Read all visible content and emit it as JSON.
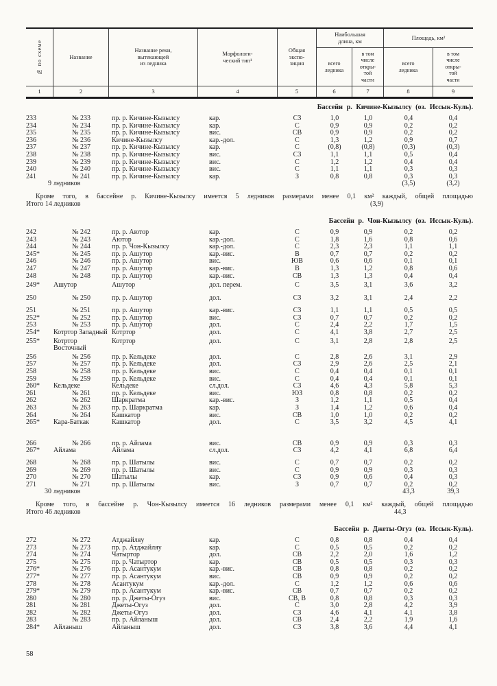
{
  "page_number": "58",
  "colors": {
    "paper": "#fbfaf6",
    "ink": "#1d1d1f",
    "rule": "#3c3c3c"
  },
  "table_header": {
    "col1": "№ по схеме",
    "col2": "Название",
    "col3": "Название реки,\nвытекающей\nиз ледника",
    "col4": "Морфологи-\nческий тип¹",
    "col5": "Общая\nэкспо-\nзиция",
    "group_length": "Наибольшая\nдлина, км",
    "group_area": "Площадь, км²",
    "sub_total": "всего\nледника",
    "sub_open": "в том\nчисле\nоткры-\nтой\nчасти",
    "col_numbers": [
      "1",
      "2",
      "3",
      "4",
      "5",
      "6",
      "7",
      "8",
      "9"
    ]
  },
  "sections": [
    {
      "basin": "Бассейн р. Кичине-Кызылсу (оз. Иссык-Куль).",
      "rows": [
        {
          "n": "233",
          "name": "№ 233",
          "river": "пр. р. Кичине-Кызылсу",
          "morph": "кар.",
          "exp": "СЗ",
          "lt": "1,0",
          "lo": "1,0",
          "at": "0,4",
          "ao": "0,4"
        },
        {
          "n": "234",
          "name": "№ 234",
          "river": "пр. р. Кичине-Кызылсу",
          "morph": "кар.",
          "exp": "С",
          "lt": "0,9",
          "lo": "0,9",
          "at": "0,2",
          "ao": "0,2"
        },
        {
          "n": "235",
          "name": "№ 235",
          "river": "пр. р. Кичине-Кызылсу",
          "morph": "вис.",
          "exp": "СВ",
          "lt": "0,9",
          "lo": "0,9",
          "at": "0,2",
          "ao": "0,2"
        },
        {
          "n": "236",
          "name": "№ 236",
          "river": "Кичине-Кызылсу",
          "morph": "кар.-дол.",
          "exp": "С",
          "lt": "1,3",
          "lo": "1,2",
          "at": "0,9",
          "ao": "0,7"
        },
        {
          "n": "237",
          "name": "№ 237",
          "river": "пр. р. Кичине-Кызылсу",
          "morph": "кар.",
          "exp": "С",
          "lt": "(0,8)",
          "lo": "(0,8)",
          "at": "(0,3)",
          "ao": "(0,3)"
        },
        {
          "n": "238",
          "name": "№ 238",
          "river": "пр. р. Кичине-Кызылсу",
          "morph": "вис.",
          "exp": "СЗ",
          "lt": "1,1",
          "lo": "1,1",
          "at": "0,5",
          "ao": "0,4"
        },
        {
          "n": "239",
          "name": "№ 239",
          "river": "пр. р. Кичине-Кызылсу",
          "morph": "вис.",
          "exp": "С",
          "lt": "1,2",
          "lo": "1,2",
          "at": "0,4",
          "ao": "0,4"
        },
        {
          "n": "240",
          "name": "№ 240",
          "river": "пр. р. Кичине-Кызылсу",
          "morph": "вис.",
          "exp": "С",
          "lt": "1,1",
          "lo": "1,1",
          "at": "0,3",
          "ao": "0,3"
        },
        {
          "n": "241",
          "name": "№ 241",
          "river": "пр. р. Кичине-Кызылсу",
          "morph": "кар.",
          "exp": "З",
          "lt": "0,8",
          "lo": "0,8",
          "at": "0,3",
          "ao": "0,3"
        }
      ],
      "summary": {
        "count": "9",
        "label": "ледников",
        "at": "(3,5)",
        "ao": "(3,2)"
      },
      "note_line1": "Кроме того, в бассейне р. Кичине-Кызылсу имеется 5 ледников размерами менее 0,1 км² каждый, общей площадью",
      "note_line2": "Итого 14 ледников",
      "note_value": "(3,9)"
    },
    {
      "basin": "Бассейн р. Чон-Кызылсу (оз. Иссык-Куль).",
      "rows": [
        {
          "n": "242",
          "name": "№ 242",
          "river": "пр. р. Аютор",
          "morph": "кар.",
          "exp": "С",
          "lt": "0,9",
          "lo": "0,9",
          "at": "0,2",
          "ao": "0,2"
        },
        {
          "n": "243",
          "name": "№ 243",
          "river": "Аютор",
          "morph": "кар.-дол.",
          "exp": "С",
          "lt": "1,8",
          "lo": "1,6",
          "at": "0,8",
          "ao": "0,6"
        },
        {
          "n": "244",
          "name": "№ 244",
          "river": "пр. р. Чон-Кызылсу",
          "morph": "кар.-дол.",
          "exp": "С",
          "lt": "2,3",
          "lo": "2,3",
          "at": "1,1",
          "ao": "1,1"
        },
        {
          "n": "245*",
          "name": "№ 245",
          "river": "пр. р. Ашутор",
          "morph": "кар.-вис.",
          "exp": "В",
          "lt": "0,7",
          "lo": "0,7",
          "at": "0,2",
          "ao": "0,2"
        },
        {
          "n": "246",
          "name": "№ 246",
          "river": "пр. р. Ашутор",
          "morph": "вис.",
          "exp": "ЮВ",
          "lt": "0,6",
          "lo": "0,6",
          "at": "0,1",
          "ao": "0,1"
        },
        {
          "n": "247",
          "name": "№ 247",
          "river": "пр. р. Ашутор",
          "morph": "кар.-вис.",
          "exp": "В",
          "lt": "1,3",
          "lo": "1,2",
          "at": "0,8",
          "ao": "0,6"
        },
        {
          "n": "248",
          "name": "№ 248",
          "river": "пр. р. Ашутор",
          "morph": "кар.-вис.",
          "exp": "СВ",
          "lt": "1,3",
          "lo": "1,3",
          "at": "0,4",
          "ao": "0,4"
        },
        {
          "n": "249*",
          "name": "Ашутор",
          "river": "Ашутор",
          "morph": "дол. перем.",
          "exp": "С",
          "lt": "3,5",
          "lo": "3,1",
          "at": "3,6",
          "ao": "3,2",
          "gap": 3
        },
        {
          "n": "250",
          "name": "№ 250",
          "river": "пр. р. Ашутор",
          "morph": "дол.",
          "exp": "СЗ",
          "lt": "3,2",
          "lo": "3,1",
          "at": "2,4",
          "ao": "2,2",
          "gap": 8
        },
        {
          "n": "251",
          "name": "№ 251",
          "river": "пр. р. Ашутор",
          "morph": "кар.-вис.",
          "exp": "СЗ",
          "lt": "1,1",
          "lo": "1,1",
          "at": "0,5",
          "ao": "0,5",
          "gap": 8
        },
        {
          "n": "252*",
          "name": "№ 252",
          "river": "пр. р. Ашутор",
          "morph": "вис.",
          "exp": "СЗ",
          "lt": "0,7",
          "lo": "0,7",
          "at": "0,2",
          "ao": "0,2"
        },
        {
          "n": "253",
          "name": "№ 253",
          "river": "пр. р. Ашутор",
          "morph": "дол.",
          "exp": "С",
          "lt": "2,4",
          "lo": "2,2",
          "at": "1,7",
          "ao": "1,5"
        },
        {
          "n": "254*",
          "name": "Котртор Западный",
          "river": "Котртор",
          "morph": "дол.",
          "exp": "С",
          "lt": "4,1",
          "lo": "3,8",
          "at": "2,7",
          "ao": "2,5"
        },
        {
          "n": "255*",
          "name": "Котртор Восточный",
          "river": "Котртор",
          "morph": "дол.",
          "exp": "С",
          "lt": "3,1",
          "lo": "2,8",
          "at": "2,8",
          "ao": "2,5",
          "gap": 2
        },
        {
          "n": "256",
          "name": "№ 256",
          "river": "пр. р. Кельдеке",
          "morph": "дол.",
          "exp": "С",
          "lt": "2,8",
          "lo": "2,6",
          "at": "3,1",
          "ao": "2,9",
          "gap": 2
        },
        {
          "n": "257",
          "name": "№ 257",
          "river": "пр. р. Кельдеке",
          "morph": "дол.",
          "exp": "СЗ",
          "lt": "2,9",
          "lo": "2,6",
          "at": "2,5",
          "ao": "2,1"
        },
        {
          "n": "258",
          "name": "№ 258",
          "river": "пр. р. Кельдеке",
          "morph": "вис.",
          "exp": "С",
          "lt": "0,4",
          "lo": "0,4",
          "at": "0,1",
          "ao": "0,1"
        },
        {
          "n": "259",
          "name": "№ 259",
          "river": "пр. р. Кельдеке",
          "morph": "вис.",
          "exp": "С",
          "lt": "0,4",
          "lo": "0,4",
          "at": "0,1",
          "ao": "0,1"
        },
        {
          "n": "260*",
          "name": "Кельдеке",
          "river": "Кельдеке",
          "morph": "сл.дол.",
          "exp": "СЗ",
          "lt": "4,6",
          "lo": "4,3",
          "at": "5,8",
          "ao": "5,3"
        },
        {
          "n": "261",
          "name": "№ 261",
          "river": "пр. р. Кельдеке",
          "morph": "вис.",
          "exp": "ЮЗ",
          "lt": "0,8",
          "lo": "0,8",
          "at": "0,2",
          "ao": "0,2"
        },
        {
          "n": "262",
          "name": "№ 262",
          "river": "Шаркратма",
          "morph": "кар.-вис.",
          "exp": "З",
          "lt": "1,2",
          "lo": "1,1",
          "at": "0,5",
          "ao": "0,4"
        },
        {
          "n": "263",
          "name": "№ 263",
          "river": "пр. р. Шаркратма",
          "morph": "кар.",
          "exp": "З",
          "lt": "1,4",
          "lo": "1,2",
          "at": "0,6",
          "ao": "0,4"
        },
        {
          "n": "264",
          "name": "№ 264",
          "river": "Кашкатор",
          "morph": "вис.",
          "exp": "СВ",
          "lt": "1,0",
          "lo": "1,0",
          "at": "0,2",
          "ao": "0,2"
        },
        {
          "n": "265*",
          "name": "Кара-Баткак",
          "river": "Кашкатор",
          "morph": "дол.",
          "exp": "С",
          "lt": "3,5",
          "lo": "3,2",
          "at": "4,5",
          "ao": "4,1"
        },
        {
          "n": "266",
          "name": "№ 266",
          "river": "пр. р. Айлама",
          "morph": "вис.",
          "exp": "СВ",
          "lt": "0,9",
          "lo": "0,9",
          "at": "0,3",
          "ao": "0,3",
          "gap": 20
        },
        {
          "n": "267*",
          "name": "Айлама",
          "river": "Айлама",
          "morph": "сл.дол.",
          "exp": "СЗ",
          "lt": "4,2",
          "lo": "4,1",
          "at": "6,8",
          "ao": "6,4"
        },
        {
          "n": "268",
          "name": "№ 268",
          "river": "пр. р. Шатылы",
          "morph": "вис.",
          "exp": "С",
          "lt": "0,7",
          "lo": "0,7",
          "at": "0,2",
          "ao": "0,2",
          "gap": 7
        },
        {
          "n": "269",
          "name": "№ 269",
          "river": "пр. р. Шатылы",
          "morph": "вис.",
          "exp": "С",
          "lt": "0,9",
          "lo": "0,9",
          "at": "0,3",
          "ao": "0,3"
        },
        {
          "n": "270",
          "name": "№ 270",
          "river": "Шатылы",
          "morph": "кар.",
          "exp": "СЗ",
          "lt": "0,9",
          "lo": "0,6",
          "at": "0,4",
          "ao": "0,3"
        },
        {
          "n": "271",
          "name": "№ 271",
          "river": "пр. р. Шатылы",
          "morph": "вис.",
          "exp": "З",
          "lt": "0,7",
          "lo": "0,7",
          "at": "0,2",
          "ao": "0,2"
        }
      ],
      "summary": {
        "count": "30",
        "label": "ледников",
        "at": "43,3",
        "ao": "39,3"
      },
      "note_line1": "Кроме того, в бассейне р. Чон-Кызылсу имеется 16 ледников размерами менее 0,1 км² каждый, общей площадью",
      "note_line2": "Итого 46 ледников",
      "note_value": "44,3"
    },
    {
      "basin": "Бассейн р. Джеты-Огуз (оз. Иссык-Куль).",
      "rows": [
        {
          "n": "272",
          "name": "№ 272",
          "river": "Атджайляу",
          "morph": "кар.",
          "exp": "С",
          "lt": "0,8",
          "lo": "0,8",
          "at": "0,4",
          "ao": "0,4"
        },
        {
          "n": "273",
          "name": "№ 273",
          "river": "пр. р. Атджайляу",
          "morph": "кар.",
          "exp": "С",
          "lt": "0,5",
          "lo": "0,5",
          "at": "0,2",
          "ao": "0,2"
        },
        {
          "n": "274",
          "name": "№ 274",
          "river": "Чатыртор",
          "morph": "дол.",
          "exp": "СВ",
          "lt": "2,2",
          "lo": "2,0",
          "at": "1,6",
          "ao": "1,2"
        },
        {
          "n": "275",
          "name": "№ 275",
          "river": "пр. р. Чатыртор",
          "morph": "кар.",
          "exp": "СВ",
          "lt": "0,5",
          "lo": "0,5",
          "at": "0,3",
          "ao": "0,3"
        },
        {
          "n": "276*",
          "name": "№ 276",
          "river": "пр. р. Асантукум",
          "morph": "кар.-вис.",
          "exp": "СВ",
          "lt": "0,8",
          "lo": "0,8",
          "at": "0,2",
          "ao": "0,2"
        },
        {
          "n": "277*",
          "name": "№ 277",
          "river": "пр. р. Асантукум",
          "morph": "вис.",
          "exp": "СВ",
          "lt": "0,9",
          "lo": "0,9",
          "at": "0,2",
          "ao": "0,2"
        },
        {
          "n": "278",
          "name": "№ 278",
          "river": "Асантукум",
          "morph": "кар.-дол.",
          "exp": "С",
          "lt": "1,2",
          "lo": "1,2",
          "at": "0,6",
          "ao": "0,6"
        },
        {
          "n": "279*",
          "name": "№ 279",
          "river": "пр. р. Асантукум",
          "morph": "кар.-вис.",
          "exp": "СВ",
          "lt": "0,7",
          "lo": "0,7",
          "at": "0,2",
          "ao": "0,2"
        },
        {
          "n": "280",
          "name": "№ 280",
          "river": "пр. р. Джеты-Огуз",
          "morph": "вис.",
          "exp": "СВ, В",
          "lt": "0,8",
          "lo": "0,8",
          "at": "0,3",
          "ao": "0,3"
        },
        {
          "n": "281",
          "name": "№ 281",
          "river": "Джеты-Огуз",
          "morph": "дол.",
          "exp": "С",
          "lt": "3,0",
          "lo": "2,8",
          "at": "4,2",
          "ao": "3,9"
        },
        {
          "n": "282",
          "name": "№ 282",
          "river": "Джеты-Огуз",
          "morph": "дол.",
          "exp": "СЗ",
          "lt": "4,6",
          "lo": "4,1",
          "at": "4,1",
          "ao": "3,8"
        },
        {
          "n": "283",
          "name": "№ 283",
          "river": "пр. р. Айланыш",
          "morph": "дол.",
          "exp": "СВ",
          "lt": "2,4",
          "lo": "2,2",
          "at": "1,9",
          "ao": "1,6"
        },
        {
          "n": "284*",
          "name": "Айланыш",
          "river": "Айланыш",
          "morph": "дол.",
          "exp": "СЗ",
          "lt": "3,8",
          "lo": "3,6",
          "at": "4,4",
          "ao": "4,1"
        }
      ]
    }
  ]
}
